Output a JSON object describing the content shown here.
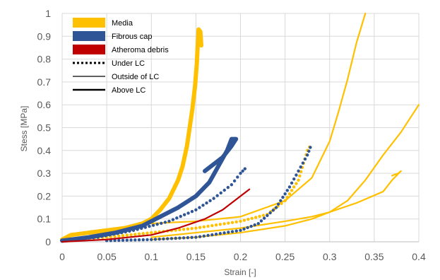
{
  "chart_data": {
    "type": "scatter",
    "title": "",
    "xlabel": "Strain [-]",
    "ylabel": "Stess [MPa]",
    "xlim": [
      0,
      0.4
    ],
    "ylim": [
      0,
      1
    ],
    "x_ticks": [
      "0",
      "0.05",
      "0.1",
      "0.15",
      "0.2",
      "0.25",
      "0.3",
      "0.35",
      "0.4"
    ],
    "y_ticks": [
      "0",
      "0.1",
      "0.2",
      "0.3",
      "0.4",
      "0.5",
      "0.6",
      "0.7",
      "0.8",
      "0.9",
      "1"
    ],
    "grid": true,
    "legend_position": "top-left",
    "legend": [
      {
        "label": "Media",
        "kind": "box",
        "color": "#FFC000"
      },
      {
        "label": "Fibrous cap",
        "kind": "box",
        "color": "#2F5597"
      },
      {
        "label": "Atheroma debris",
        "kind": "box",
        "color": "#C00000"
      },
      {
        "label": "Under LC",
        "kind": "dotted",
        "color": "#000000"
      },
      {
        "label": "Outside of LC",
        "kind": "thin",
        "color": "#000000"
      },
      {
        "label": "Above LC",
        "kind": "thick",
        "color": "#000000"
      }
    ],
    "series": [
      {
        "tissue": "Media",
        "location": "Above LC",
        "style": "thick",
        "color": "#FFC000",
        "points": [
          [
            0,
            0.01
          ],
          [
            0.01,
            0.03
          ],
          [
            0.03,
            0.04
          ],
          [
            0.05,
            0.05
          ],
          [
            0.07,
            0.06
          ],
          [
            0.09,
            0.08
          ],
          [
            0.1,
            0.1
          ],
          [
            0.11,
            0.14
          ],
          [
            0.12,
            0.19
          ],
          [
            0.13,
            0.27
          ],
          [
            0.135,
            0.33
          ],
          [
            0.14,
            0.42
          ],
          [
            0.143,
            0.5
          ],
          [
            0.146,
            0.58
          ],
          [
            0.149,
            0.68
          ],
          [
            0.151,
            0.78
          ],
          [
            0.152,
            0.86
          ],
          [
            0.153,
            0.93
          ],
          [
            0.155,
            0.92
          ],
          [
            0.156,
            0.86
          ]
        ]
      },
      {
        "tissue": "Media",
        "location": "Outside of LC",
        "style": "thin",
        "color": "#FFC000",
        "points": [
          [
            0.1,
            0.08
          ],
          [
            0.15,
            0.09
          ],
          [
            0.2,
            0.11
          ],
          [
            0.25,
            0.18
          ],
          [
            0.28,
            0.28
          ],
          [
            0.3,
            0.44
          ],
          [
            0.31,
            0.57
          ],
          [
            0.32,
            0.71
          ],
          [
            0.33,
            0.87
          ],
          [
            0.34,
            1.0
          ]
        ]
      },
      {
        "tissue": "Media",
        "location": "Outside of LC",
        "style": "thin",
        "color": "#FFC000",
        "points": [
          [
            0.1,
            0.01
          ],
          [
            0.15,
            0.02
          ],
          [
            0.2,
            0.04
          ],
          [
            0.25,
            0.07
          ],
          [
            0.28,
            0.1
          ],
          [
            0.3,
            0.13
          ],
          [
            0.32,
            0.18
          ],
          [
            0.34,
            0.27
          ],
          [
            0.36,
            0.38
          ],
          [
            0.38,
            0.48
          ],
          [
            0.39,
            0.54
          ],
          [
            0.4,
            0.6
          ]
        ]
      },
      {
        "tissue": "Media",
        "location": "Outside of LC",
        "style": "thin",
        "color": "#FFC000",
        "points": [
          [
            0.1,
            0.02
          ],
          [
            0.15,
            0.04
          ],
          [
            0.2,
            0.06
          ],
          [
            0.25,
            0.09
          ],
          [
            0.28,
            0.11
          ],
          [
            0.3,
            0.13
          ],
          [
            0.33,
            0.17
          ],
          [
            0.36,
            0.22
          ],
          [
            0.37,
            0.27
          ],
          [
            0.38,
            0.31
          ],
          [
            0.377,
            0.3
          ],
          [
            0.37,
            0.29
          ]
        ]
      },
      {
        "tissue": "Media",
        "location": "Under LC",
        "style": "dotted",
        "color": "#FFC000",
        "points": [
          [
            0,
            0.01
          ],
          [
            0.05,
            0.02
          ],
          [
            0.1,
            0.04
          ],
          [
            0.15,
            0.06
          ],
          [
            0.2,
            0.09
          ],
          [
            0.23,
            0.12
          ],
          [
            0.25,
            0.18
          ],
          [
            0.265,
            0.27
          ],
          [
            0.275,
            0.4
          ],
          [
            0.28,
            0.43
          ]
        ]
      },
      {
        "tissue": "Fibrous cap",
        "location": "Above LC",
        "style": "thick",
        "color": "#2F5597",
        "points": [
          [
            0,
            0.005
          ],
          [
            0.03,
            0.02
          ],
          [
            0.06,
            0.04
          ],
          [
            0.09,
            0.07
          ],
          [
            0.11,
            0.11
          ],
          [
            0.13,
            0.15
          ],
          [
            0.15,
            0.2
          ],
          [
            0.165,
            0.26
          ],
          [
            0.175,
            0.33
          ],
          [
            0.185,
            0.4
          ],
          [
            0.19,
            0.45
          ],
          [
            0.195,
            0.45
          ],
          [
            0.19,
            0.42
          ],
          [
            0.18,
            0.37
          ],
          [
            0.16,
            0.31
          ]
        ]
      },
      {
        "tissue": "Fibrous cap",
        "location": "Under LC",
        "style": "dotted",
        "color": "#2F5597",
        "points": [
          [
            0,
            0.005
          ],
          [
            0.04,
            0.02
          ],
          [
            0.08,
            0.05
          ],
          [
            0.12,
            0.09
          ],
          [
            0.15,
            0.14
          ],
          [
            0.17,
            0.19
          ],
          [
            0.19,
            0.25
          ],
          [
            0.2,
            0.3
          ],
          [
            0.205,
            0.32
          ],
          [
            0.21,
            0.31
          ]
        ]
      },
      {
        "tissue": "Fibrous cap",
        "location": "Under LC",
        "style": "dotted",
        "color": "#2F5597",
        "points": [
          [
            0.05,
            0.005
          ],
          [
            0.1,
            0.01
          ],
          [
            0.15,
            0.02
          ],
          [
            0.2,
            0.05
          ],
          [
            0.22,
            0.08
          ],
          [
            0.24,
            0.15
          ],
          [
            0.255,
            0.24
          ],
          [
            0.265,
            0.31
          ],
          [
            0.275,
            0.38
          ],
          [
            0.28,
            0.43
          ]
        ]
      },
      {
        "tissue": "Atheroma debris",
        "location": "Outside of LC",
        "style": "thin",
        "color": "#C00000",
        "points": [
          [
            0,
            0.0
          ],
          [
            0.05,
            0.01
          ],
          [
            0.1,
            0.03
          ],
          [
            0.13,
            0.06
          ],
          [
            0.16,
            0.1
          ],
          [
            0.18,
            0.14
          ],
          [
            0.2,
            0.2
          ],
          [
            0.21,
            0.23
          ]
        ]
      }
    ]
  }
}
